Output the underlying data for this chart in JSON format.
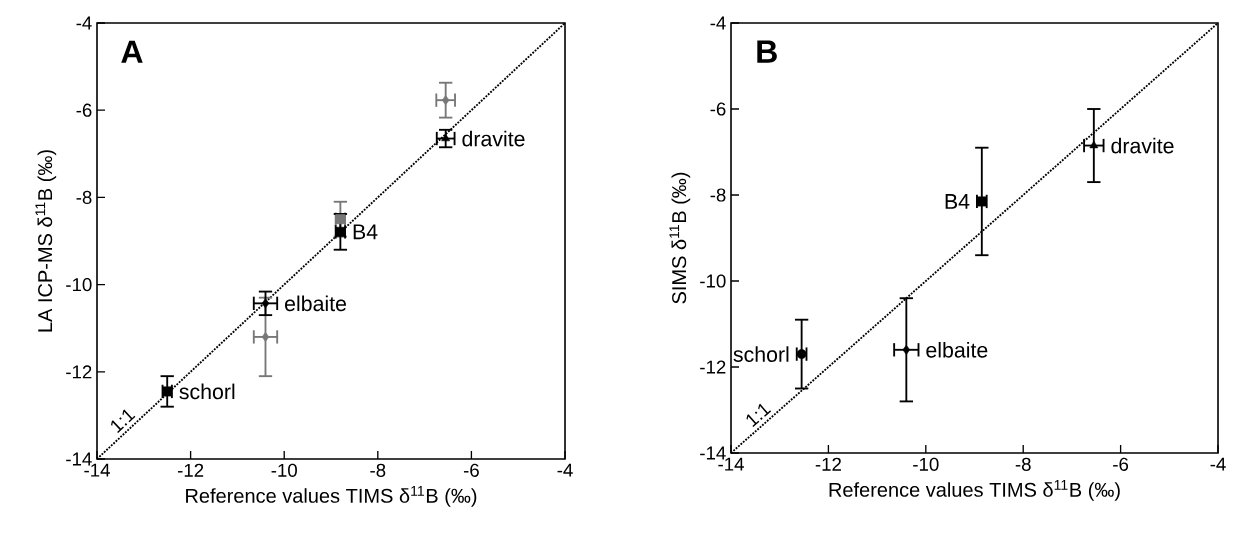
{
  "chart_data": [
    {
      "type": "scatter",
      "title": "A",
      "xlabel": "Reference values TIMS δ$^{11}$B (‰)",
      "ylabel": "LA ICP-MS δ$^{11}$B (‰)",
      "xlim": [
        -14,
        -4
      ],
      "ylim": [
        -14,
        -4
      ],
      "xticks": [
        -14,
        -12,
        -10,
        -8,
        -6,
        -4
      ],
      "yticks": [
        -14,
        -12,
        -10,
        -8,
        -6,
        -4
      ],
      "series": [
        {
          "type": "line",
          "name": "1:1",
          "color": "#000000",
          "line_style": "dotted",
          "marker": "none",
          "x": [
            -14,
            -4
          ],
          "values": [
            -14,
            -4
          ]
        },
        {
          "color": "#777777",
          "marker": "diamond",
          "x": [
            -10.4
          ],
          "values": [
            -11.2
          ],
          "errors": [
            0.9
          ],
          "xerrors": [
            0.25
          ]
        },
        {
          "color": "#777777",
          "marker": "square",
          "x": [
            -8.8
          ],
          "values": [
            -8.5
          ],
          "errors": [
            0.4
          ],
          "xerrors": [
            0.1
          ]
        },
        {
          "color": "#777777",
          "marker": "diamond",
          "x": [
            -6.55
          ],
          "values": [
            -5.77
          ],
          "errors": [
            0.4
          ],
          "xerrors": [
            0.2
          ]
        },
        {
          "name": "schorl",
          "color": "#000000",
          "marker": "square",
          "x": [
            -12.5
          ],
          "values": [
            -12.45
          ],
          "errors": [
            0.35
          ],
          "xerrors": [
            0.1
          ]
        },
        {
          "name": "elbaite",
          "color": "#000000",
          "marker": "diamond",
          "x": [
            -10.4
          ],
          "values": [
            -10.43
          ],
          "errors": [
            0.27
          ],
          "xerrors": [
            0.25
          ]
        },
        {
          "name": "B4",
          "color": "#000000",
          "marker": "square",
          "x": [
            -8.8
          ],
          "values": [
            -8.79
          ],
          "errors": [
            0.41
          ],
          "xerrors": [
            0.1
          ]
        },
        {
          "name": "dravite",
          "color": "#000000",
          "marker": "triangle",
          "x": [
            -6.55
          ],
          "values": [
            -6.65
          ],
          "errors": [
            0.2
          ],
          "xerrors": [
            0.19
          ]
        }
      ]
    },
    {
      "type": "scatter",
      "title": "B",
      "xlabel": "Reference values TIMS δ$^{11}$B (‰)",
      "ylabel": "SIMS δ$^{11}$B (‰)",
      "xlim": [
        -14,
        -4
      ],
      "ylim": [
        -14,
        -4
      ],
      "xticks": [
        -14,
        -12,
        -10,
        -8,
        -6,
        -4
      ],
      "yticks": [
        -14,
        -12,
        -10,
        -8,
        -6,
        -4
      ],
      "series": [
        {
          "type": "line",
          "name": "1:1",
          "color": "#000000",
          "line_style": "dotted",
          "marker": "none",
          "x": [
            -14,
            -4
          ],
          "values": [
            -14,
            -4
          ]
        },
        {
          "name": "schorl",
          "color": "#000000",
          "marker": "circle",
          "x": [
            -12.55
          ],
          "values": [
            -11.7
          ],
          "errors": [
            0.8
          ],
          "xerrors": [
            0.1
          ]
        },
        {
          "name": "elbaite",
          "color": "#000000",
          "marker": "diamond",
          "x": [
            -10.4
          ],
          "values": [
            -11.6
          ],
          "errors": [
            1.2
          ],
          "xerrors": [
            0.25
          ]
        },
        {
          "name": "B4",
          "color": "#000000",
          "marker": "square",
          "x": [
            -8.85
          ],
          "values": [
            -8.15
          ],
          "errors": [
            1.25
          ],
          "xerrors": [
            0.1
          ]
        },
        {
          "name": "dravite",
          "color": "#000000",
          "marker": "triangle",
          "x": [
            -6.55
          ],
          "values": [
            -6.85
          ],
          "errors": [
            0.85
          ],
          "xerrors": [
            0.2
          ]
        }
      ]
    }
  ]
}
